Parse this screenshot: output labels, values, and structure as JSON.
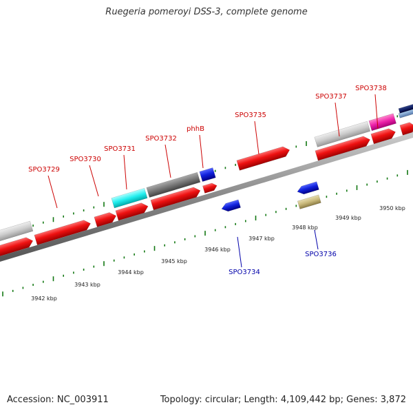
{
  "title": "Ruegeria pomeroyi DSS-3, complete genome",
  "footer": {
    "accession_label": "Accession:",
    "accession": "NC_003911",
    "topology_label": "Topology:",
    "topology": "circular",
    "length_label": "Length:",
    "length": "4,109,442 bp",
    "genes_label": "Genes:",
    "genes": "3,872"
  },
  "kbp_labels": [
    "3942 kbp",
    "3943 kbp",
    "3944 kbp",
    "3945 kbp",
    "3946 kbp",
    "3947 kbp",
    "3948 kbp",
    "3949 kbp",
    "3950 kbp"
  ],
  "gene_labels_top": [
    "SPO3729",
    "SPO3730",
    "SPO3731",
    "SPO3732",
    "phhB",
    "SPO3735",
    "SPO3737",
    "SPO3738"
  ],
  "gene_labels_bottom": [
    "SPO3734",
    "SPO3736"
  ],
  "colors": {
    "forward_label": "#cc0000",
    "reverse_label": "#0000aa",
    "forward_gene": "#ee1111",
    "reverse_gene": "#1122dd",
    "tick": "#117711",
    "axis": "#888888",
    "cyan_feature": "#22eeee",
    "grey_feature": "#777777",
    "lightgrey_feature": "#cccccc",
    "magenta_feature": "#ee22aa",
    "olive_feature": "#c8b87a",
    "navy_feature": "#112266"
  }
}
